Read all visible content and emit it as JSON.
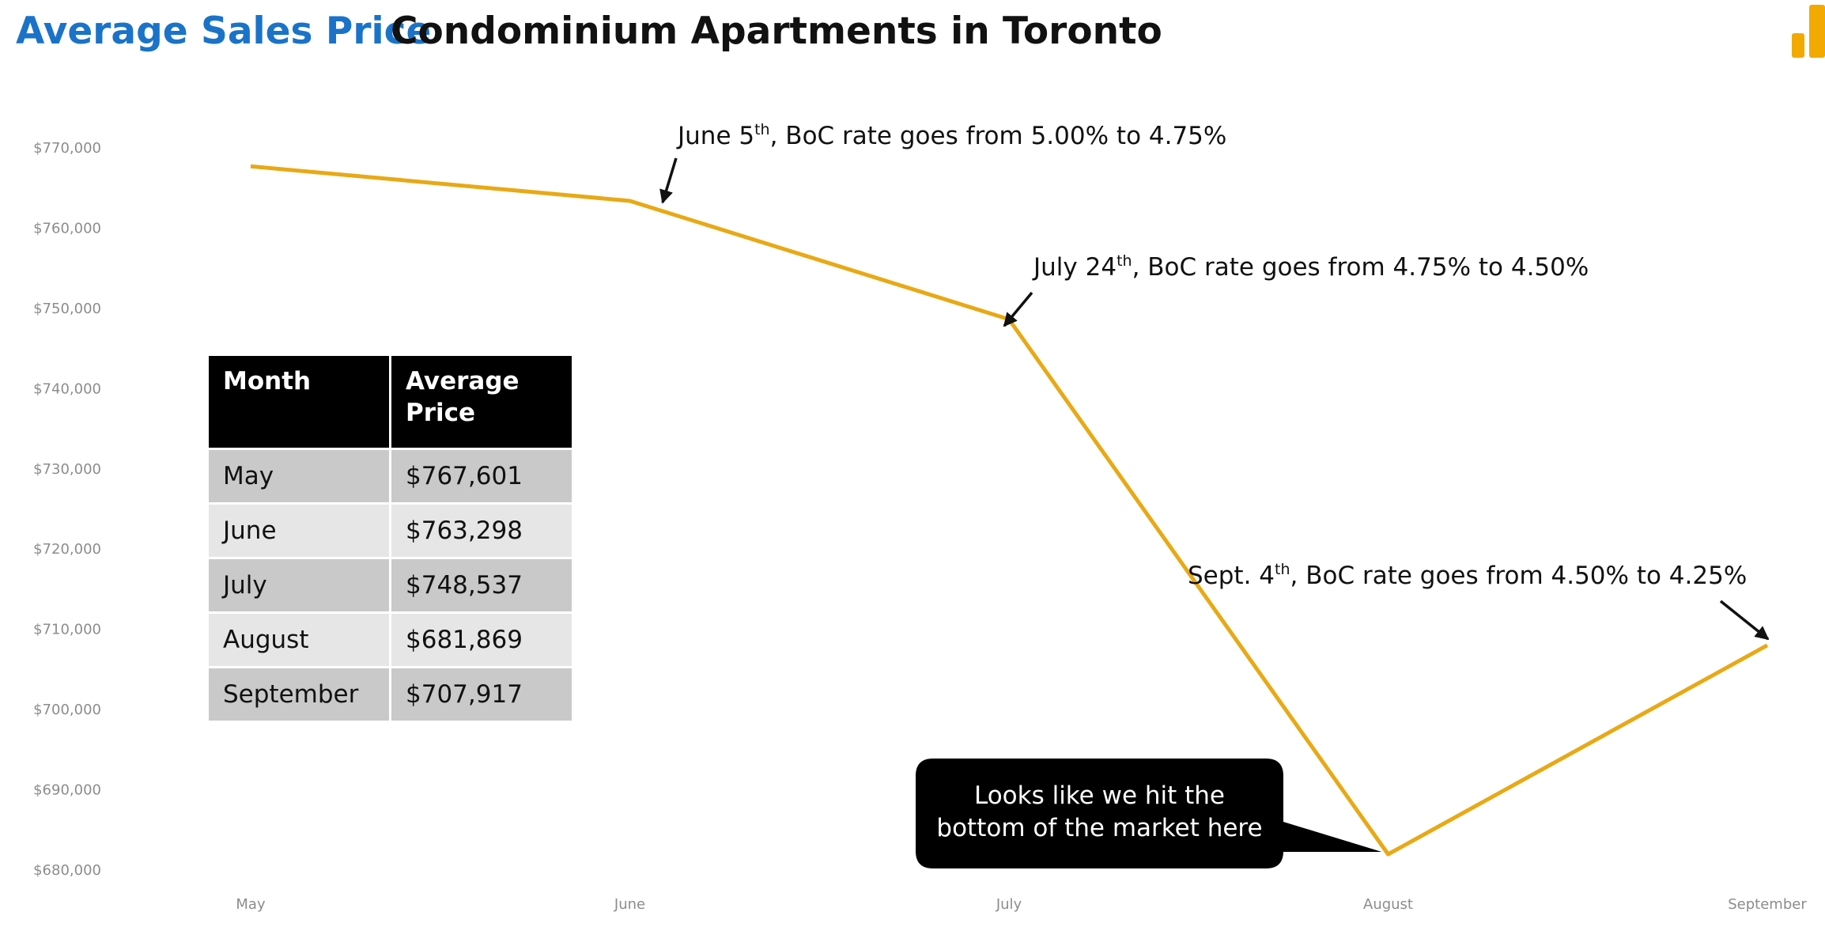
{
  "header": {
    "title_part1": "Average Sales Price",
    "title_part2": "Condominium Apartments in Toronto"
  },
  "colors": {
    "line": "#e8a915",
    "title_accent": "#1a73c8",
    "logo": "#f2a900"
  },
  "table": {
    "headers": [
      "Month",
      "Average Price"
    ],
    "rows": [
      [
        "May",
        "$767,601"
      ],
      [
        "June",
        "$763,298"
      ],
      [
        "July",
        "$748,537"
      ],
      [
        "August",
        "$681,869"
      ],
      [
        "September",
        "$707,917"
      ]
    ]
  },
  "chart_data": {
    "type": "line",
    "title": "",
    "xlabel": "",
    "ylabel": "",
    "categories": [
      "May",
      "June",
      "July",
      "August",
      "September"
    ],
    "series": [
      {
        "values": [
          767601,
          763298,
          748537,
          681869,
          707917
        ]
      }
    ],
    "ylim": [
      680000,
      770000
    ],
    "yticks": [
      680000,
      690000,
      700000,
      710000,
      720000,
      730000,
      740000,
      750000,
      760000,
      770000
    ],
    "ytick_labels": [
      "$680,000",
      "$690,000",
      "$700,000",
      "$710,000",
      "$720,000",
      "$730,000",
      "$740,000",
      "$750,000",
      "$760,000",
      "$770,000"
    ],
    "grid": false,
    "legend": "none",
    "annotations": [
      {
        "pre": "June 5",
        "sup": "th",
        "post": ", BoC rate goes from 5.00% to 4.75%",
        "target": "June"
      },
      {
        "pre": "July 24",
        "sup": "th",
        "post": ", BoC rate goes from 4.75% to 4.50%",
        "target": "July"
      },
      {
        "pre": "Sept. 4",
        "sup": "th",
        "post": ", BoC rate goes from 4.50% to 4.25%",
        "target": "September"
      }
    ],
    "callout": {
      "lines": [
        "Looks like we hit the",
        "bottom of the market here"
      ],
      "target": "August"
    }
  }
}
